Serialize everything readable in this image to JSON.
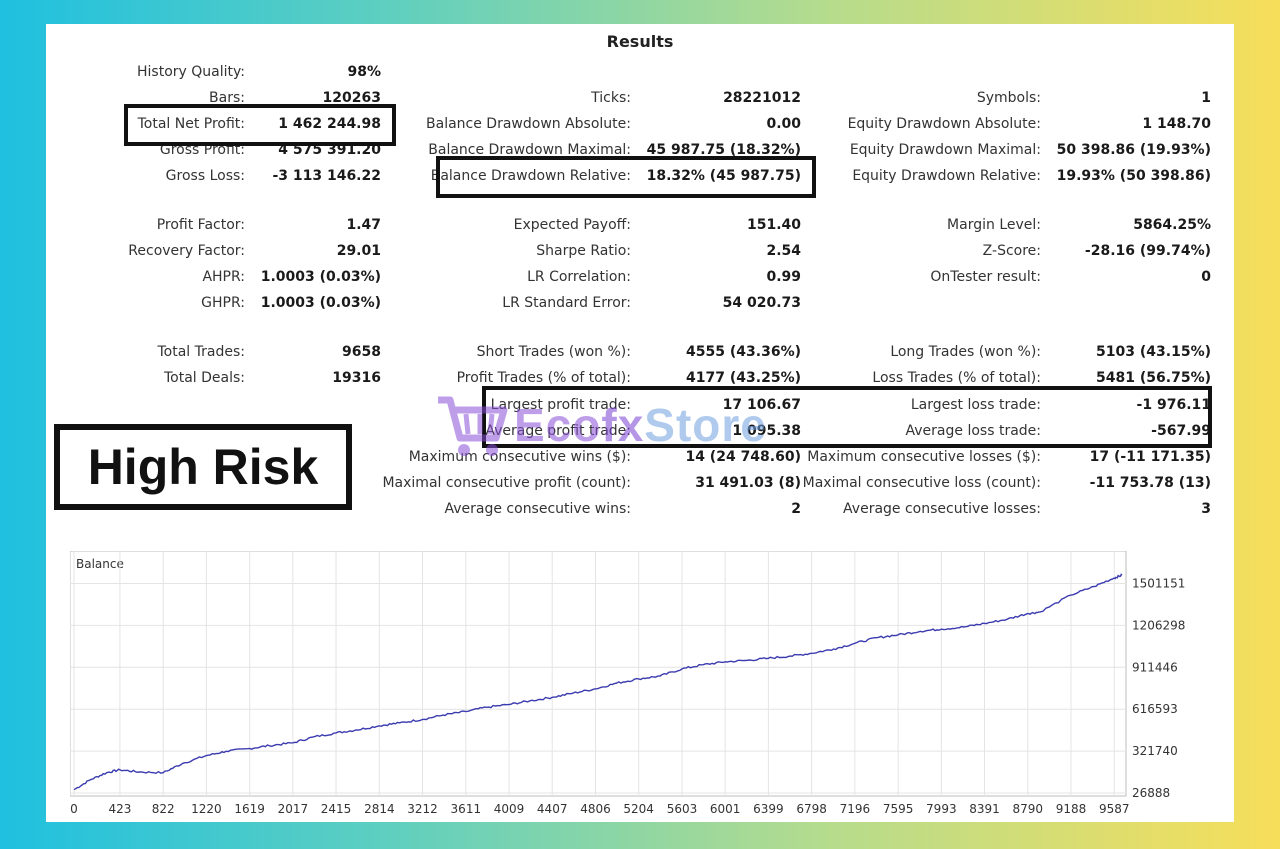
{
  "title": "Results",
  "col1": [
    {
      "label": "History Quality:",
      "value": "98%"
    },
    {
      "label": "Bars:",
      "value": "120263"
    },
    {
      "label": "Total Net Profit:",
      "value": "1 462 244.98"
    },
    {
      "label": "Gross Profit:",
      "value": "4 575 391.20"
    },
    {
      "label": "Gross Loss:",
      "value": "-3 113 146.22"
    },
    {
      "label": "Profit Factor:",
      "value": "1.47"
    },
    {
      "label": "Recovery Factor:",
      "value": "29.01"
    },
    {
      "label": "AHPR:",
      "value": "1.0003 (0.03%)"
    },
    {
      "label": "GHPR:",
      "value": "1.0003 (0.03%)"
    },
    {
      "label": "Total Trades:",
      "value": "9658"
    },
    {
      "label": "Total Deals:",
      "value": "19316"
    }
  ],
  "col2": [
    {
      "label": "Ticks:",
      "value": "28221012"
    },
    {
      "label": "Balance Drawdown Absolute:",
      "value": "0.00"
    },
    {
      "label": "Balance Drawdown Maximal:",
      "value": "45 987.75 (18.32%)"
    },
    {
      "label": "Balance Drawdown Relative:",
      "value": "18.32% (45 987.75)"
    },
    {
      "label": "Expected Payoff:",
      "value": "151.40"
    },
    {
      "label": "Sharpe Ratio:",
      "value": "2.54"
    },
    {
      "label": "LR Correlation:",
      "value": "0.99"
    },
    {
      "label": "LR Standard Error:",
      "value": "54 020.73"
    },
    {
      "label": "Short Trades (won %):",
      "value": "4555 (43.36%)"
    },
    {
      "label": "Profit Trades (% of total):",
      "value": "4177 (43.25%)"
    },
    {
      "label": "Largest profit trade:",
      "value": "17 106.67"
    },
    {
      "label": "Average profit trade:",
      "value": "1 095.38"
    },
    {
      "label": "Maximum consecutive wins ($):",
      "value": "14 (24 748.60)"
    },
    {
      "label": "Maximal consecutive profit (count):",
      "value": "31 491.03 (8)"
    },
    {
      "label": "Average consecutive wins:",
      "value": "2"
    }
  ],
  "col3": [
    {
      "label": "Symbols:",
      "value": "1"
    },
    {
      "label": "Equity Drawdown Absolute:",
      "value": "1 148.70"
    },
    {
      "label": "Equity Drawdown Maximal:",
      "value": "50 398.86 (19.93%)"
    },
    {
      "label": "Equity Drawdown Relative:",
      "value": "19.93% (50 398.86)"
    },
    {
      "label": "Margin Level:",
      "value": "5864.25%"
    },
    {
      "label": "Z-Score:",
      "value": "-28.16 (99.74%)"
    },
    {
      "label": "OnTester result:",
      "value": "0"
    },
    {
      "label": "Long Trades (won %):",
      "value": "5103 (43.15%)"
    },
    {
      "label": "Loss Trades (% of total):",
      "value": "5481 (56.75%)"
    },
    {
      "label": "Largest loss trade:",
      "value": "-1 976.11"
    },
    {
      "label": "Average loss trade:",
      "value": "-567.99"
    },
    {
      "label": "Maximum consecutive losses ($):",
      "value": "17 (-11 171.35)"
    },
    {
      "label": "Maximal consecutive loss (count):",
      "value": "-11 753.78 (13)"
    },
    {
      "label": "Average consecutive losses:",
      "value": "3"
    }
  ],
  "risk_label": "High Risk",
  "watermark": {
    "prefix": "Eco",
    "mid": "fx",
    "suffix": "Store"
  },
  "colors": {
    "line": "#3b3bb0",
    "highlight_border": "#111111",
    "grid": "#e4e4e4"
  },
  "chart_data": {
    "type": "line",
    "title": "Balance",
    "x_ticks": [
      "0",
      "423",
      "822",
      "1220",
      "1619",
      "2017",
      "2415",
      "2814",
      "3212",
      "3611",
      "4009",
      "4407",
      "4806",
      "5204",
      "5603",
      "6001",
      "6399",
      "6798",
      "7196",
      "7595",
      "7993",
      "8391",
      "8790",
      "9188",
      "9587"
    ],
    "y_ticks": [
      "26888",
      "321740",
      "616593",
      "911446",
      "1206298",
      "1501151"
    ],
    "ylim": [
      26888,
      1575000
    ],
    "xlim": [
      0,
      9658
    ],
    "series": [
      {
        "x": [
          0,
          150,
          300,
          423,
          600,
          822,
          1000,
          1220,
          1400,
          1619,
          1800,
          2017,
          2200,
          2415,
          2600,
          2814,
          3000,
          3212,
          3400,
          3611,
          3800,
          4009,
          4200,
          4407,
          4600,
          4806,
          5000,
          5204,
          5400,
          5603,
          5800,
          6001,
          6200,
          6399,
          6600,
          6798,
          7000,
          7196,
          7400,
          7595,
          7800,
          7993,
          8200,
          8391,
          8600,
          8790,
          8900,
          9188,
          9400,
          9587,
          9658
        ],
        "y": [
          50000,
          120000,
          170000,
          190000,
          175000,
          170000,
          235000,
          290000,
          320000,
          340000,
          360000,
          380000,
          420000,
          450000,
          470000,
          500000,
          520000,
          545000,
          575000,
          600000,
          630000,
          650000,
          675000,
          700000,
          730000,
          760000,
          800000,
          830000,
          850000,
          900000,
          930000,
          950000,
          960000,
          975000,
          990000,
          1010000,
          1040000,
          1080000,
          1120000,
          1140000,
          1165000,
          1180000,
          1195000,
          1220000,
          1250000,
          1290000,
          1300000,
          1420000,
          1480000,
          1540000,
          1560000
        ]
      }
    ]
  }
}
